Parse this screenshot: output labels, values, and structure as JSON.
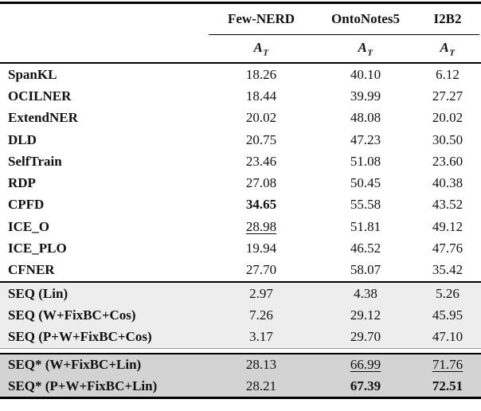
{
  "table": {
    "col_headers": [
      {
        "label": "Few-NERD"
      },
      {
        "label": "OntoNotes5"
      },
      {
        "label": "I2B2"
      }
    ],
    "metric": {
      "symbol": "A",
      "subscript": "T"
    },
    "sections": [
      {
        "name": "baselines",
        "shade": "none",
        "rows": [
          {
            "label": "SpanKL",
            "values": [
              "18.26",
              "40.10",
              "6.12"
            ],
            "emphasis": [
              "",
              "",
              ""
            ]
          },
          {
            "label": "OCILNER",
            "values": [
              "18.44",
              "39.99",
              "27.27"
            ],
            "emphasis": [
              "",
              "",
              ""
            ]
          },
          {
            "label": "ExtendNER",
            "values": [
              "20.02",
              "48.08",
              "20.02"
            ],
            "emphasis": [
              "",
              "",
              ""
            ]
          },
          {
            "label": "DLD",
            "values": [
              "20.75",
              "47.23",
              "30.50"
            ],
            "emphasis": [
              "",
              "",
              ""
            ]
          },
          {
            "label": "SelfTrain",
            "values": [
              "23.46",
              "51.08",
              "23.60"
            ],
            "emphasis": [
              "",
              "",
              ""
            ]
          },
          {
            "label": "RDP",
            "values": [
              "27.08",
              "50.45",
              "40.38"
            ],
            "emphasis": [
              "",
              "",
              ""
            ]
          },
          {
            "label": "CPFD",
            "values": [
              "34.65",
              "55.58",
              "43.52"
            ],
            "emphasis": [
              "bold",
              "",
              ""
            ]
          },
          {
            "label": "ICE_O",
            "values": [
              "28.98",
              "51.81",
              "49.12"
            ],
            "emphasis": [
              "underline",
              "",
              ""
            ]
          },
          {
            "label": "ICE_PLO",
            "values": [
              "19.94",
              "46.52",
              "47.76"
            ],
            "emphasis": [
              "",
              "",
              ""
            ]
          },
          {
            "label": "CFNER",
            "values": [
              "27.70",
              "58.07",
              "35.42"
            ],
            "emphasis": [
              "",
              "",
              ""
            ]
          }
        ]
      },
      {
        "name": "seq",
        "shade": "light",
        "rows": [
          {
            "label": "SEQ (Lin)",
            "values": [
              "2.97",
              "4.38",
              "5.26"
            ],
            "emphasis": [
              "",
              "",
              ""
            ]
          },
          {
            "label": "SEQ (W+FixBC+Cos)",
            "values": [
              "7.26",
              "29.12",
              "45.95"
            ],
            "emphasis": [
              "",
              "",
              ""
            ]
          },
          {
            "label": "SEQ (P+W+FixBC+Cos)",
            "values": [
              "3.17",
              "29.70",
              "47.10"
            ],
            "emphasis": [
              "",
              "",
              ""
            ]
          }
        ]
      },
      {
        "name": "seq-star",
        "shade": "dark",
        "rows": [
          {
            "label": "SEQ* (W+FixBC+Lin)",
            "values": [
              "28.13",
              "66.99",
              "71.76"
            ],
            "emphasis": [
              "",
              "underline",
              "underline"
            ]
          },
          {
            "label": "SEQ* (P+W+FixBC+Lin)",
            "values": [
              "28.21",
              "67.39",
              "72.51"
            ],
            "emphasis": [
              "",
              "bold",
              "bold"
            ]
          }
        ]
      }
    ],
    "colors": {
      "light_shade": "#ededed",
      "dark_shade": "#d3d3d3",
      "rule": "#000000",
      "text": "#111111"
    }
  }
}
